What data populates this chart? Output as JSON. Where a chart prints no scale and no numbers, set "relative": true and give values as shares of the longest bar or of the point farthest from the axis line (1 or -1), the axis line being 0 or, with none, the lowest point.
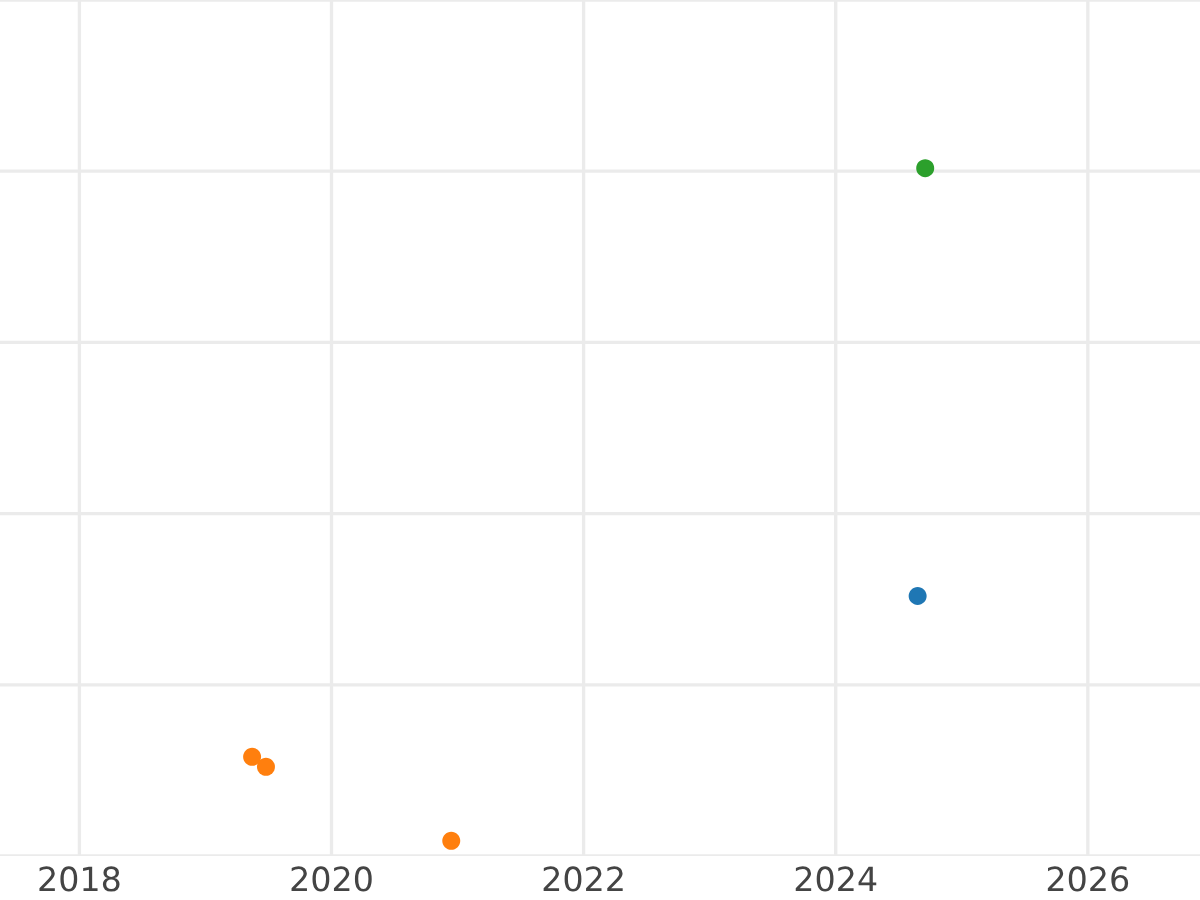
{
  "chart_data": {
    "type": "scatter",
    "relative": true,
    "grid": true,
    "legend": false,
    "marker": "circle",
    "xlim": [
      2017.37,
      2026.89
    ],
    "xticks": [
      2018,
      2020,
      2022,
      2024,
      2026
    ],
    "tick_labels": "x",
    "series": [
      {
        "color": "#1f77b4",
        "x": [
          2024.65
        ],
        "values": [
          0.364
        ]
      },
      {
        "color": "#ff7f0e",
        "x": [
          2019.37,
          2019.48,
          2020.95
        ],
        "values": [
          0.125,
          0.11,
          0
        ]
      },
      {
        "color": "#2ca02c",
        "x": [
          2024.71
        ],
        "values": [
          1
        ]
      }
    ]
  }
}
